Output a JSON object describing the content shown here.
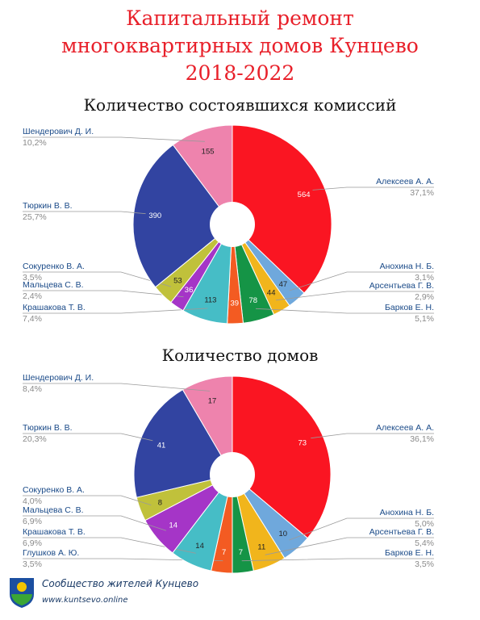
{
  "page": {
    "title_lines": [
      "Капитальный ремонт",
      "многоквартирных домов Кунцево",
      "2018-2022"
    ]
  },
  "chart_data": [
    {
      "type": "pie",
      "title": "Количество состоявшихся комиссий",
      "slices": [
        {
          "name": "Алексеев А. А.",
          "value": 564,
          "percent": "37,1%",
          "color": "#fa1522"
        },
        {
          "name": "Анохина Н. Б.",
          "value": 47,
          "percent": "3,1%",
          "color": "#6fa8dc"
        },
        {
          "name": "Арсентьева Г. В.",
          "value": 44,
          "percent": "2,9%",
          "color": "#f1b51c"
        },
        {
          "name": "Барков Е. Н.",
          "value": 78,
          "percent": "5,1%",
          "color": "#159446"
        },
        {
          "name": "",
          "value": 39,
          "percent": "",
          "color": "#f35b22"
        },
        {
          "name": "Крашакова Т. В.",
          "value": 113,
          "percent": "7,4%",
          "color": "#46bdc6"
        },
        {
          "name": "Мальцева С. В.",
          "value": 36,
          "percent": "2,4%",
          "color": "#a535c7"
        },
        {
          "name": "Сокуренко В. А.",
          "value": 53,
          "percent": "3,5%",
          "color": "#c0c13b"
        },
        {
          "name": "Тюркин В. В.",
          "value": 390,
          "percent": "25,7%",
          "color": "#3244a1"
        },
        {
          "name": "Шендерович Д. И.",
          "value": 155,
          "percent": "10,2%",
          "color": "#ee83ad"
        }
      ]
    },
    {
      "type": "pie",
      "title": "Количество домов",
      "slices": [
        {
          "name": "Алексеев А. А.",
          "value": 73,
          "percent": "36,1%",
          "color": "#fa1522"
        },
        {
          "name": "Анохина Н. Б.",
          "value": 10,
          "percent": "5,0%",
          "color": "#6fa8dc"
        },
        {
          "name": "Арсентьева Г. В.",
          "value": 11,
          "percent": "5,4%",
          "color": "#f1b51c"
        },
        {
          "name": "Барков Е. Н.",
          "value": 7,
          "percent": "3,5%",
          "color": "#159446"
        },
        {
          "name": "Глушков А. Ю.",
          "value": 7,
          "percent": "3,5%",
          "color": "#f35b22"
        },
        {
          "name": "Крашакова Т. В.",
          "value": 14,
          "percent": "6,9%",
          "color": "#46bdc6"
        },
        {
          "name": "Мальцева С. В.",
          "value": 14,
          "percent": "6,9%",
          "color": "#a535c7"
        },
        {
          "name": "Сокуренко В. А.",
          "value": 8,
          "percent": "4,0%",
          "color": "#c0c13b"
        },
        {
          "name": "Тюркин В. В.",
          "value": 41,
          "percent": "20,3%",
          "color": "#3244a1"
        },
        {
          "name": "Шендерович Д. И.",
          "value": 17,
          "percent": "8,4%",
          "color": "#ee83ad"
        }
      ]
    }
  ],
  "footer": {
    "community_name": "Сообщество жителей Кунцево",
    "url": "www.kuntsevo.online",
    "colors": {
      "logo_blue": "#1b4fa0",
      "logo_green": "#3aa635",
      "logo_yellow": "#f2c500"
    }
  }
}
